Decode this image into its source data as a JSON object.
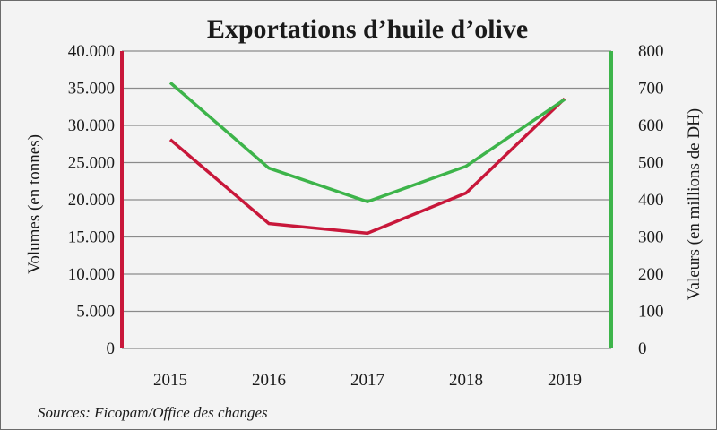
{
  "chart_data": {
    "type": "line",
    "title": "Exportations d’huile d’olive",
    "categories": [
      "2015",
      "2016",
      "2017",
      "2018",
      "2019"
    ],
    "ylabel_left": "Volumes (en tonnes)",
    "ylabel_right": "Valeurs (en millions de DH)",
    "y_left": {
      "lim": [
        0,
        40000
      ],
      "ticks": [
        0,
        5000,
        10000,
        15000,
        20000,
        25000,
        30000,
        35000,
        40000
      ],
      "tick_labels": [
        "0",
        "5.000",
        "10.000",
        "15.000",
        "20.000",
        "25.000",
        "30.000",
        "35.000",
        "40.000"
      ],
      "color": "#c8173a"
    },
    "y_right": {
      "lim": [
        0,
        800
      ],
      "ticks": [
        0,
        100,
        200,
        300,
        400,
        500,
        600,
        700,
        800
      ],
      "tick_labels": [
        "0",
        "100",
        "200",
        "300",
        "400",
        "500",
        "600",
        "700",
        "800"
      ],
      "color": "#3db44a"
    },
    "grid": true,
    "series": [
      {
        "axis": "left",
        "color": "#c8173a",
        "values": [
          28100,
          16800,
          15500,
          20900,
          33600
        ]
      },
      {
        "axis": "right",
        "color": "#3db44a",
        "values": [
          715,
          485,
          395,
          490,
          670
        ]
      }
    ],
    "source": "Sources: Ficopam/Office des changes"
  }
}
